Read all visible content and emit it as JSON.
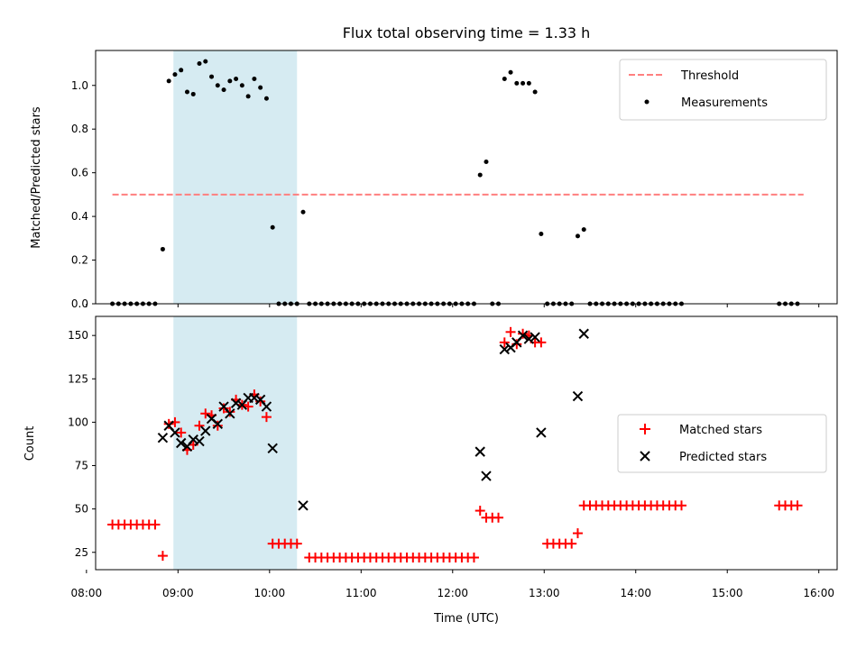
{
  "title": "Flux total observing time = 1.33 h",
  "colors": {
    "threshold": "#ff7f7f",
    "measurement": "#000000",
    "matched": "#ff0000",
    "predicted": "#000000",
    "span": "#add8e6"
  },
  "chart_data": [
    {
      "type": "scatter",
      "ylabel": "Matched/Predicted stars",
      "xlim": [
        "08:06",
        "16:12"
      ],
      "ylim": [
        0,
        1.16
      ],
      "y_ticks": [
        0.0,
        0.2,
        0.4,
        0.6,
        0.8,
        1.0
      ],
      "y_tick_labels": [
        "0.0",
        "0.2",
        "0.4",
        "0.6",
        "0.8",
        "1.0"
      ],
      "shaded_span": [
        "08:57",
        "10:18"
      ],
      "legend_position": "upper right",
      "threshold": {
        "label": "Threshold",
        "y": 0.5,
        "x": [
          "08:17",
          "15:50"
        ]
      },
      "measurements": {
        "label": "Measurements",
        "points": [
          [
            "08:17",
            0
          ],
          [
            "08:21",
            0
          ],
          [
            "08:25",
            0
          ],
          [
            "08:29",
            0
          ],
          [
            "08:33",
            0
          ],
          [
            "08:37",
            0
          ],
          [
            "08:41",
            0
          ],
          [
            "08:45",
            0
          ],
          [
            "08:50",
            0.25
          ],
          [
            "08:54",
            1.02
          ],
          [
            "08:58",
            1.05
          ],
          [
            "09:02",
            1.07
          ],
          [
            "09:06",
            0.97
          ],
          [
            "09:10",
            0.96
          ],
          [
            "09:14",
            1.1
          ],
          [
            "09:18",
            1.11
          ],
          [
            "09:22",
            1.04
          ],
          [
            "09:26",
            1.0
          ],
          [
            "09:30",
            0.98
          ],
          [
            "09:34",
            1.02
          ],
          [
            "09:38",
            1.03
          ],
          [
            "09:42",
            1.0
          ],
          [
            "09:46",
            0.95
          ],
          [
            "09:50",
            1.03
          ],
          [
            "09:54",
            0.99
          ],
          [
            "09:58",
            0.94
          ],
          [
            "10:02",
            0.35
          ],
          [
            "10:06",
            0
          ],
          [
            "10:10",
            0
          ],
          [
            "10:14",
            0
          ],
          [
            "10:18",
            0
          ],
          [
            "10:22",
            0.42
          ],
          [
            "10:26",
            0
          ],
          [
            "10:30",
            0
          ],
          [
            "10:34",
            0
          ],
          [
            "10:38",
            0
          ],
          [
            "10:42",
            0
          ],
          [
            "10:46",
            0
          ],
          [
            "10:50",
            0
          ],
          [
            "10:54",
            0
          ],
          [
            "10:58",
            0
          ],
          [
            "11:02",
            0
          ],
          [
            "11:06",
            0
          ],
          [
            "11:10",
            0
          ],
          [
            "11:14",
            0
          ],
          [
            "11:18",
            0
          ],
          [
            "11:22",
            0
          ],
          [
            "11:26",
            0
          ],
          [
            "11:30",
            0
          ],
          [
            "11:34",
            0
          ],
          [
            "11:38",
            0
          ],
          [
            "11:42",
            0
          ],
          [
            "11:46",
            0
          ],
          [
            "11:50",
            0
          ],
          [
            "11:54",
            0
          ],
          [
            "11:58",
            0
          ],
          [
            "12:02",
            0
          ],
          [
            "12:06",
            0
          ],
          [
            "12:10",
            0
          ],
          [
            "12:14",
            0
          ],
          [
            "12:18",
            0.59
          ],
          [
            "12:22",
            0.65
          ],
          [
            "12:26",
            0
          ],
          [
            "12:30",
            0
          ],
          [
            "12:34",
            1.03
          ],
          [
            "12:38",
            1.06
          ],
          [
            "12:42",
            1.01
          ],
          [
            "12:46",
            1.01
          ],
          [
            "12:50",
            1.01
          ],
          [
            "12:54",
            0.97
          ],
          [
            "12:58",
            0.32
          ],
          [
            "13:02",
            0
          ],
          [
            "13:06",
            0
          ],
          [
            "13:10",
            0
          ],
          [
            "13:14",
            0
          ],
          [
            "13:18",
            0
          ],
          [
            "13:22",
            0.31
          ],
          [
            "13:26",
            0.34
          ],
          [
            "13:30",
            0
          ],
          [
            "13:34",
            0
          ],
          [
            "13:38",
            0
          ],
          [
            "13:42",
            0
          ],
          [
            "13:46",
            0
          ],
          [
            "13:50",
            0
          ],
          [
            "13:54",
            0
          ],
          [
            "13:58",
            0
          ],
          [
            "14:02",
            0
          ],
          [
            "14:06",
            0
          ],
          [
            "14:10",
            0
          ],
          [
            "14:14",
            0
          ],
          [
            "14:18",
            0
          ],
          [
            "14:22",
            0
          ],
          [
            "14:26",
            0
          ],
          [
            "14:30",
            0
          ],
          [
            "15:34",
            0
          ],
          [
            "15:38",
            0
          ],
          [
            "15:42",
            0
          ],
          [
            "15:46",
            0
          ]
        ]
      }
    },
    {
      "type": "scatter",
      "xlabel": "Time (UTC)",
      "ylabel": "Count",
      "xlim": [
        "08:06",
        "16:12"
      ],
      "ylim": [
        15,
        161
      ],
      "x_ticks": [
        "08:00",
        "09:00",
        "10:00",
        "11:00",
        "12:00",
        "13:00",
        "14:00",
        "15:00",
        "16:00"
      ],
      "y_ticks": [
        25,
        50,
        75,
        100,
        125,
        150
      ],
      "y_tick_labels": [
        "25",
        "50",
        "75",
        "100",
        "125",
        "150"
      ],
      "shaded_span": [
        "08:57",
        "10:18"
      ],
      "legend_position": "center right",
      "series": [
        {
          "name": "Matched stars",
          "marker": "+",
          "points": [
            [
              "08:17",
              41
            ],
            [
              "08:21",
              41
            ],
            [
              "08:25",
              41
            ],
            [
              "08:29",
              41
            ],
            [
              "08:33",
              41
            ],
            [
              "08:37",
              41
            ],
            [
              "08:41",
              41
            ],
            [
              "08:45",
              41
            ],
            [
              "08:50",
              23
            ],
            [
              "08:54",
              99
            ],
            [
              "08:58",
              100
            ],
            [
              "09:02",
              94
            ],
            [
              "09:06",
              84
            ],
            [
              "09:10",
              87
            ],
            [
              "09:14",
              98
            ],
            [
              "09:18",
              105
            ],
            [
              "09:22",
              104
            ],
            [
              "09:26",
              98
            ],
            [
              "09:30",
              108
            ],
            [
              "09:34",
              106
            ],
            [
              "09:38",
              113
            ],
            [
              "09:42",
              110
            ],
            [
              "09:46",
              109
            ],
            [
              "09:50",
              116
            ],
            [
              "09:54",
              112
            ],
            [
              "09:58",
              103
            ],
            [
              "10:02",
              30
            ],
            [
              "10:06",
              30
            ],
            [
              "10:10",
              30
            ],
            [
              "10:14",
              30
            ],
            [
              "10:18",
              30
            ],
            [
              "10:26",
              22
            ],
            [
              "10:30",
              22
            ],
            [
              "10:34",
              22
            ],
            [
              "10:38",
              22
            ],
            [
              "10:42",
              22
            ],
            [
              "10:46",
              22
            ],
            [
              "10:50",
              22
            ],
            [
              "10:54",
              22
            ],
            [
              "10:58",
              22
            ],
            [
              "11:02",
              22
            ],
            [
              "11:06",
              22
            ],
            [
              "11:10",
              22
            ],
            [
              "11:14",
              22
            ],
            [
              "11:18",
              22
            ],
            [
              "11:22",
              22
            ],
            [
              "11:26",
              22
            ],
            [
              "11:30",
              22
            ],
            [
              "11:34",
              22
            ],
            [
              "11:38",
              22
            ],
            [
              "11:42",
              22
            ],
            [
              "11:46",
              22
            ],
            [
              "11:50",
              22
            ],
            [
              "11:54",
              22
            ],
            [
              "11:58",
              22
            ],
            [
              "12:02",
              22
            ],
            [
              "12:06",
              22
            ],
            [
              "12:10",
              22
            ],
            [
              "12:14",
              22
            ],
            [
              "12:18",
              49
            ],
            [
              "12:22",
              45
            ],
            [
              "12:26",
              45
            ],
            [
              "12:30",
              45
            ],
            [
              "12:34",
              146
            ],
            [
              "12:38",
              152
            ],
            [
              "12:42",
              145
            ],
            [
              "12:46",
              151
            ],
            [
              "12:50",
              150
            ],
            [
              "12:54",
              146
            ],
            [
              "12:58",
              146
            ],
            [
              "13:02",
              30
            ],
            [
              "13:06",
              30
            ],
            [
              "13:10",
              30
            ],
            [
              "13:14",
              30
            ],
            [
              "13:18",
              30
            ],
            [
              "13:22",
              36
            ],
            [
              "13:26",
              52
            ],
            [
              "13:30",
              52
            ],
            [
              "13:34",
              52
            ],
            [
              "13:38",
              52
            ],
            [
              "13:42",
              52
            ],
            [
              "13:46",
              52
            ],
            [
              "13:50",
              52
            ],
            [
              "13:54",
              52
            ],
            [
              "13:58",
              52
            ],
            [
              "14:02",
              52
            ],
            [
              "14:06",
              52
            ],
            [
              "14:10",
              52
            ],
            [
              "14:14",
              52
            ],
            [
              "14:18",
              52
            ],
            [
              "14:22",
              52
            ],
            [
              "14:26",
              52
            ],
            [
              "14:30",
              52
            ],
            [
              "15:34",
              52
            ],
            [
              "15:38",
              52
            ],
            [
              "15:42",
              52
            ],
            [
              "15:46",
              52
            ]
          ]
        },
        {
          "name": "Predicted stars",
          "marker": "x",
          "points": [
            [
              "08:50",
              91
            ],
            [
              "08:54",
              98
            ],
            [
              "08:58",
              94
            ],
            [
              "09:02",
              88
            ],
            [
              "09:06",
              86
            ],
            [
              "09:10",
              90
            ],
            [
              "09:14",
              89
            ],
            [
              "09:18",
              95
            ],
            [
              "09:22",
              102
            ],
            [
              "09:26",
              99
            ],
            [
              "09:30",
              109
            ],
            [
              "09:34",
              105
            ],
            [
              "09:38",
              111
            ],
            [
              "09:42",
              110
            ],
            [
              "09:46",
              114
            ],
            [
              "09:50",
              114
            ],
            [
              "09:54",
              113
            ],
            [
              "09:58",
              109
            ],
            [
              "10:02",
              85
            ],
            [
              "10:22",
              52
            ],
            [
              "12:18",
              83
            ],
            [
              "12:22",
              69
            ],
            [
              "12:34",
              142
            ],
            [
              "12:38",
              143
            ],
            [
              "12:42",
              146
            ],
            [
              "12:46",
              150
            ],
            [
              "12:50",
              148
            ],
            [
              "12:54",
              149
            ],
            [
              "12:58",
              94
            ],
            [
              "13:22",
              115
            ],
            [
              "13:26",
              151
            ]
          ]
        }
      ]
    }
  ]
}
